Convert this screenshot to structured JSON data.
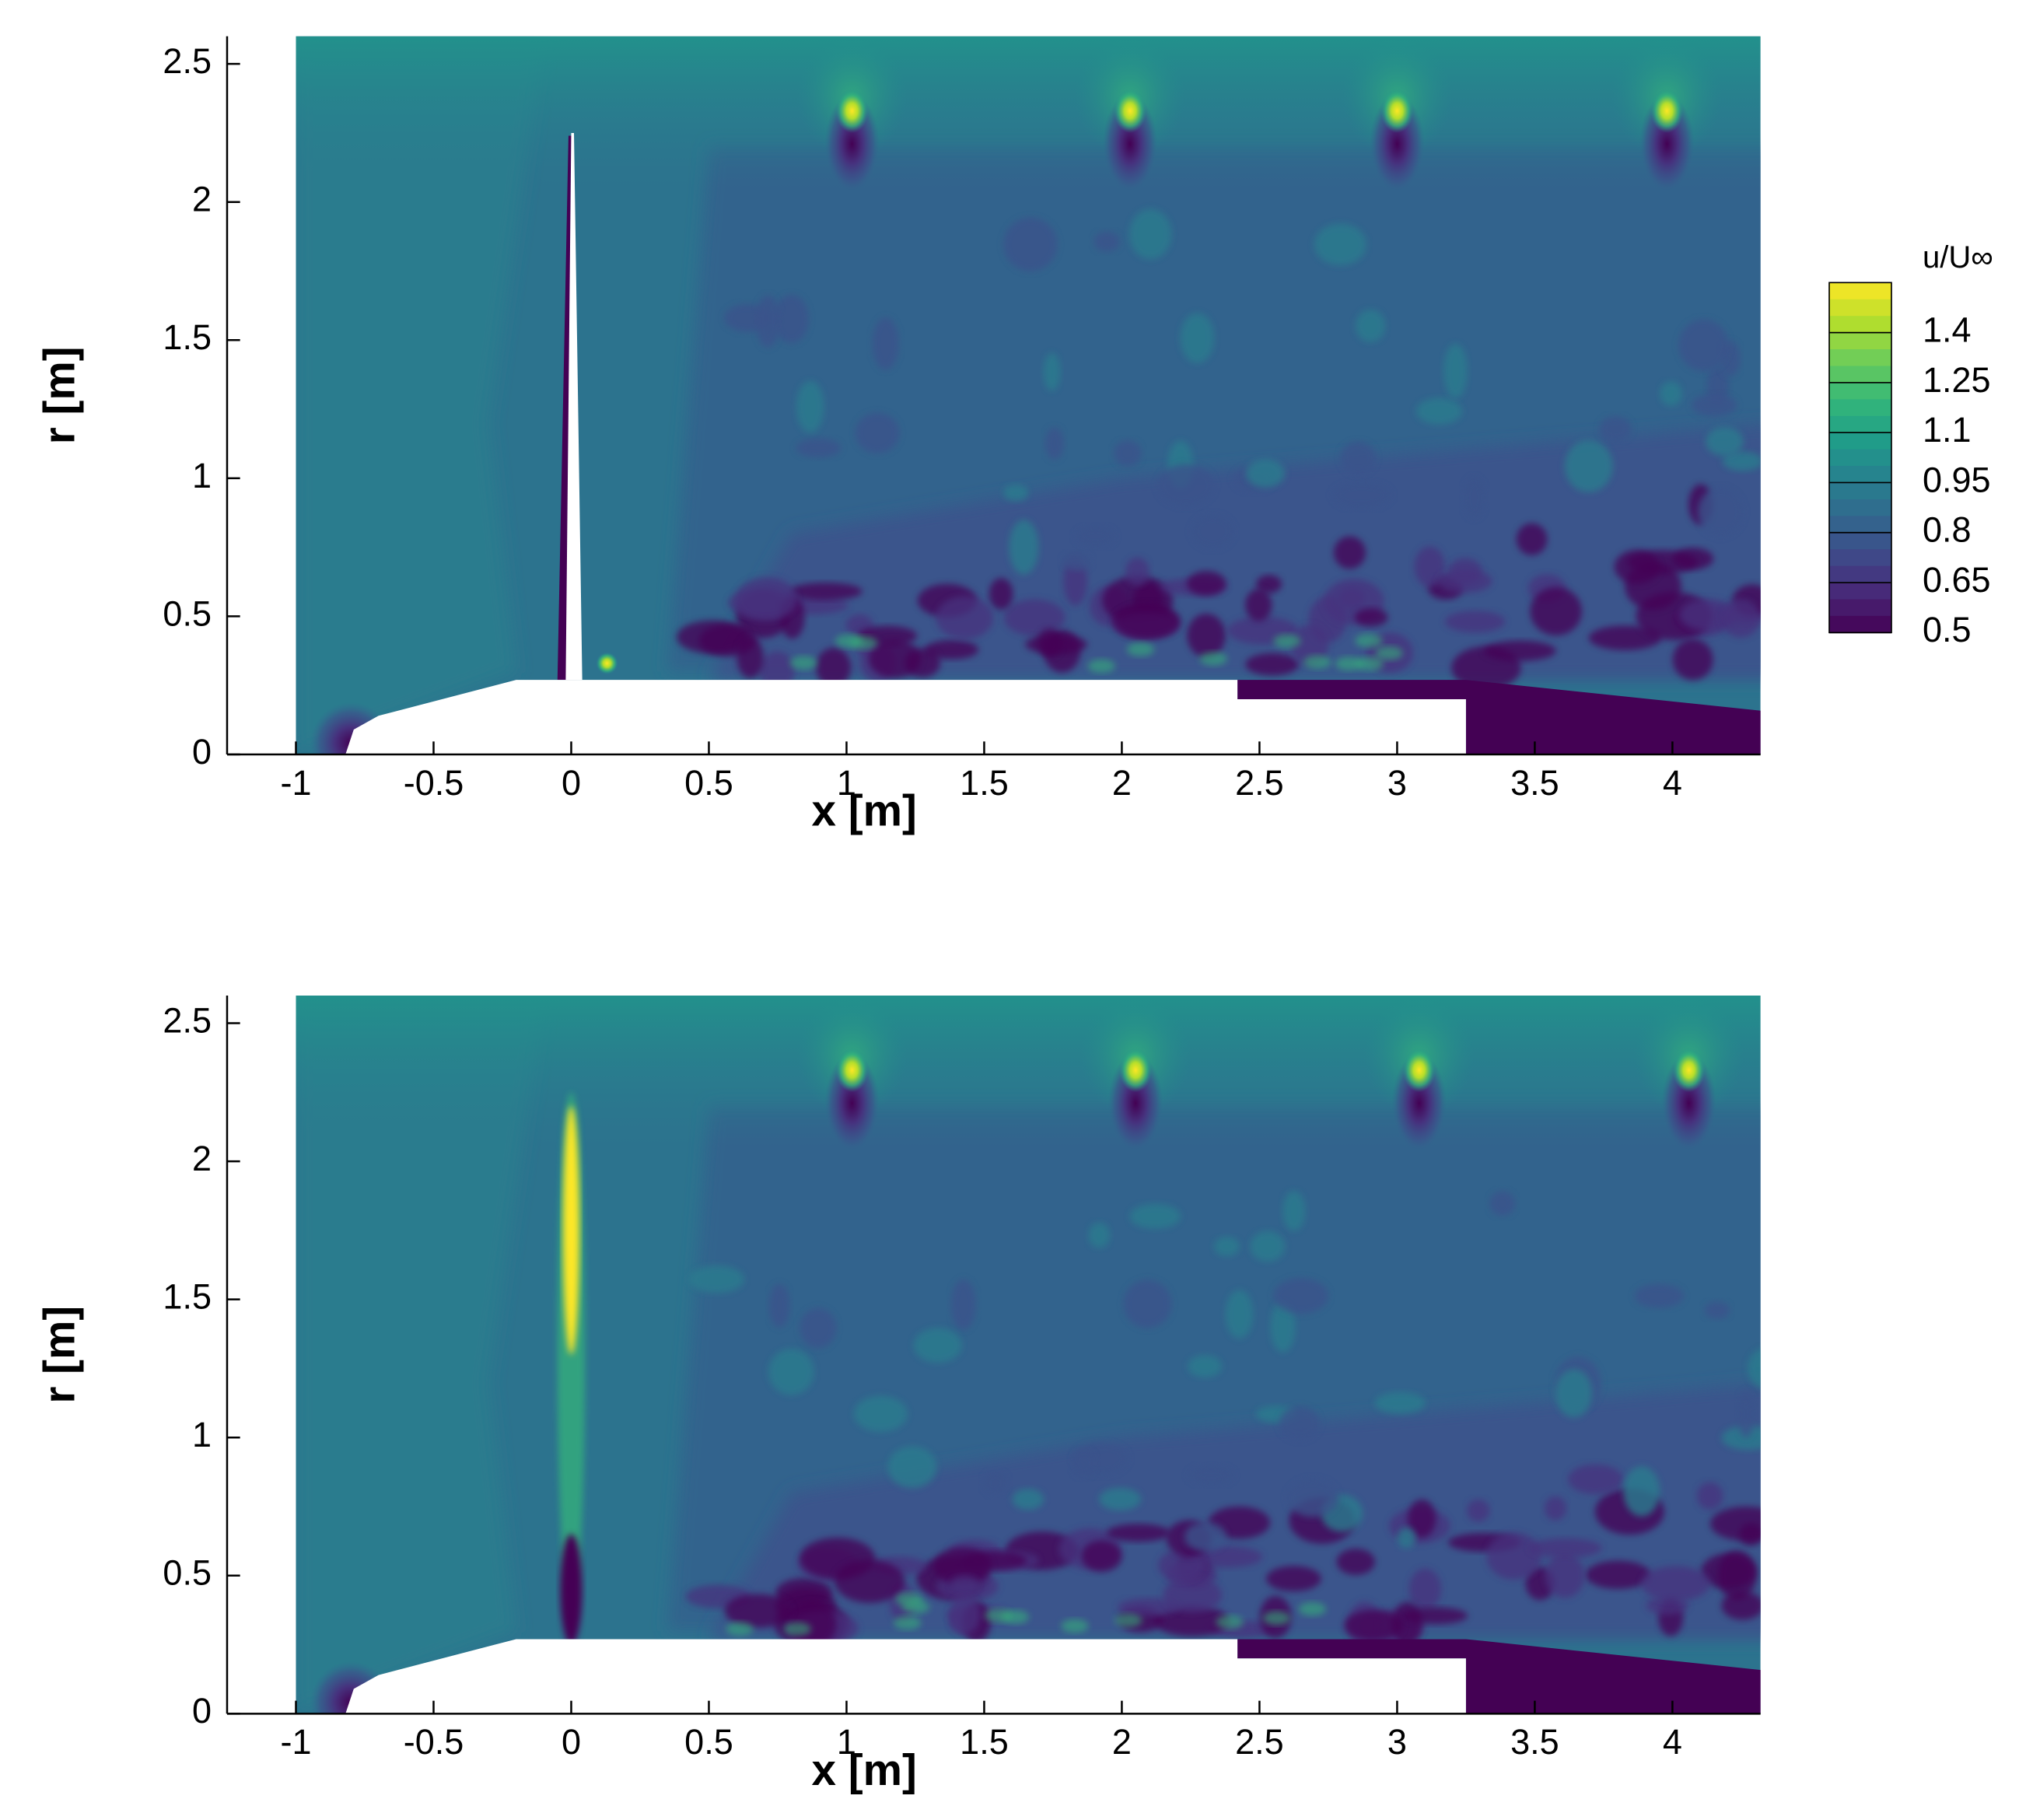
{
  "chart_data": [
    {
      "type": "contour",
      "xlabel": "x [m]",
      "ylabel": "r [m]",
      "xlim": [
        -1.25,
        4.32
      ],
      "ylim": [
        0,
        2.6
      ],
      "xticks": [
        -1,
        -0.5,
        0,
        0.5,
        1,
        1.5,
        2,
        2.5,
        3,
        3.5,
        4
      ],
      "yticks": [
        0,
        0.5,
        1,
        1.5,
        2,
        2.5
      ],
      "colormap": "viridis",
      "colorbar": {
        "label": "u/U∞",
        "lim": [
          0.5,
          1.55
        ],
        "ticks": [
          1.4,
          1.25,
          1.1,
          0.95,
          0.8,
          0.65,
          0.5
        ]
      }
    },
    {
      "type": "contour",
      "xlabel": "x [m]",
      "ylabel": "r [m]",
      "xlim": [
        -1.25,
        4.32
      ],
      "ylim": [
        0,
        2.6
      ],
      "xticks": [
        -1,
        -0.5,
        0,
        0.5,
        1,
        1.5,
        2,
        2.5,
        3,
        3.5,
        4
      ],
      "yticks": [
        0,
        0.5,
        1,
        1.5,
        2,
        2.5
      ],
      "colormap": "viridis"
    }
  ]
}
